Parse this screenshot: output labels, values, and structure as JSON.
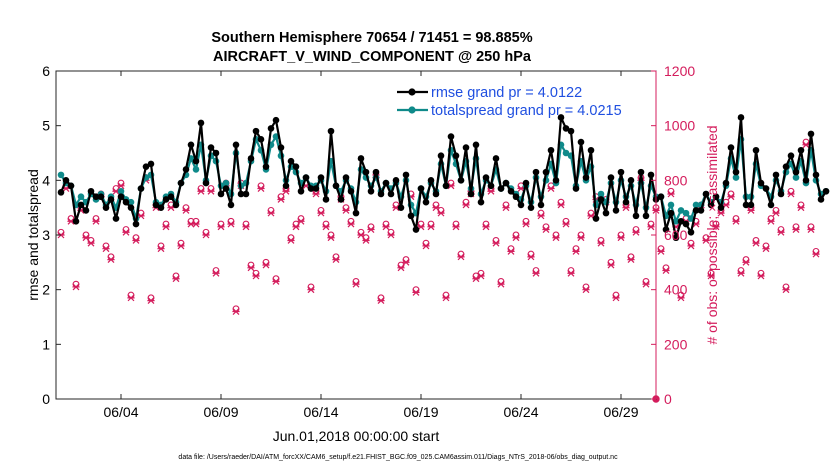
{
  "chart_data": {
    "type": "line",
    "title_line1": "Southern Hemisphere 70654 / 71451 = 98.885%",
    "title_line2": "AIRCRAFT_V_WIND_COMPONENT @ 250 hPa",
    "xlabel": "Jun.01,2018 00:00:00 start",
    "ylabel_left": "rmse and totalspread",
    "ylabel_right": "# of obs: o=possible; ×=assimilated",
    "footer": "data file: /Users/raeder/DAI/ATM_forcXX/CAM6_setup/f.e21.FHIST_BGC.f09_025.CAM6assim.011/Diags_NTrS_2018-06/obs_diag_output.nc",
    "xlim": [
      0.75,
      30.75
    ],
    "ylim_left": [
      0,
      6
    ],
    "ylim_right": [
      0,
      1200
    ],
    "x_ticks": [
      4,
      9,
      14,
      19,
      24,
      29
    ],
    "x_tick_labels": [
      "06/04",
      "06/09",
      "06/14",
      "06/19",
      "06/24",
      "06/29"
    ],
    "y_ticks_left": [
      0,
      1,
      2,
      3,
      4,
      5,
      6
    ],
    "y_tick_labels_left": [
      "0",
      "1",
      "2",
      "3",
      "4",
      "5",
      "6"
    ],
    "y_ticks_right": [
      0,
      200,
      400,
      600,
      800,
      1000,
      1200
    ],
    "y_tick_labels_right": [
      "0",
      "200",
      "400",
      "600",
      "800",
      "1000",
      "1200"
    ],
    "colors": {
      "rmse": "#000000",
      "spread": "#0f8a8a",
      "obs": "#d41c5c",
      "legend_text": "#1f4fe0",
      "axis": "#262626"
    },
    "legend": [
      {
        "key": "rmse",
        "label": "rmse grand pr = 4.0122"
      },
      {
        "key": "spread",
        "label": "totalspread grand pr = 4.0215"
      }
    ],
    "series": [
      {
        "name": "rmse",
        "x0": 1.0,
        "dx": 0.25,
        "values": [
          3.78,
          4.0,
          3.9,
          3.25,
          3.55,
          3.45,
          3.8,
          3.7,
          3.7,
          3.5,
          3.65,
          3.3,
          3.7,
          3.6,
          3.5,
          3.2,
          3.85,
          4.25,
          4.3,
          3.55,
          3.5,
          3.65,
          3.7,
          3.55,
          3.95,
          4.2,
          4.65,
          4.35,
          5.05,
          3.95,
          4.6,
          4.5,
          3.75,
          3.85,
          3.55,
          4.65,
          3.75,
          3.75,
          4.4,
          4.9,
          4.75,
          4.25,
          4.95,
          5.1,
          4.6,
          3.9,
          4.35,
          4.25,
          3.8,
          4.05,
          3.85,
          3.85,
          4.05,
          3.65,
          4.9,
          3.9,
          3.65,
          4.05,
          3.8,
          3.4,
          4.4,
          4.15,
          3.8,
          4.15,
          3.75,
          3.95,
          3.75,
          4.0,
          3.5,
          4.1,
          3.35,
          3.1,
          3.85,
          3.6,
          4.0,
          3.75,
          4.45,
          3.9,
          4.8,
          4.45,
          4.0,
          4.6,
          3.75,
          4.65,
          3.6,
          4.05,
          3.9,
          4.4,
          3.85,
          3.95,
          3.8,
          3.7,
          3.55,
          3.95,
          3.5,
          4.15,
          3.55,
          4.15,
          4.55,
          4.0,
          5.15,
          4.95,
          4.9,
          3.85,
          4.7,
          4.05,
          4.55,
          3.3,
          3.65,
          3.4,
          4.05,
          3.45,
          4.15,
          3.6,
          4.0,
          3.35,
          4.15,
          3.35,
          4.1,
          3.65,
          3.7,
          3.1,
          3.4,
          2.95,
          3.25,
          3.2,
          3.05,
          3.45,
          3.45,
          3.75,
          3.55,
          3.7,
          3.5,
          3.95,
          4.6,
          4.15,
          5.15,
          3.55,
          3.55,
          4.55,
          3.95,
          3.85,
          3.55,
          4.1,
          3.75,
          4.25,
          4.45,
          4.15,
          4.55,
          4.0,
          4.85,
          4.1,
          3.65,
          3.8
        ]
      },
      {
        "name": "totalspread",
        "x0": 1.0,
        "dx": 0.25,
        "values": [
          4.1,
          3.95,
          3.9,
          3.55,
          3.7,
          3.6,
          3.75,
          3.65,
          3.75,
          3.55,
          3.7,
          3.5,
          3.8,
          3.65,
          3.6,
          3.3,
          3.85,
          4.05,
          4.1,
          3.6,
          3.55,
          3.7,
          3.75,
          3.6,
          3.95,
          4.1,
          4.4,
          4.2,
          4.65,
          4.0,
          4.45,
          4.35,
          3.9,
          3.95,
          3.75,
          4.5,
          3.9,
          3.95,
          4.35,
          4.75,
          4.55,
          4.2,
          4.65,
          4.8,
          4.45,
          4.0,
          4.25,
          4.15,
          3.95,
          4.05,
          3.9,
          3.9,
          4.0,
          3.8,
          4.35,
          3.9,
          3.8,
          4.0,
          3.85,
          3.6,
          4.2,
          4.05,
          3.9,
          4.05,
          3.8,
          3.95,
          3.85,
          3.95,
          3.7,
          4.0,
          3.55,
          3.4,
          3.85,
          3.7,
          3.95,
          3.8,
          4.3,
          3.9,
          4.55,
          4.3,
          4.0,
          4.35,
          3.85,
          4.4,
          3.75,
          4.0,
          3.9,
          4.2,
          3.85,
          3.95,
          3.85,
          3.75,
          3.65,
          3.9,
          3.6,
          4.05,
          3.7,
          4.0,
          4.3,
          3.95,
          4.65,
          4.5,
          4.45,
          3.9,
          4.35,
          4.0,
          4.25,
          3.55,
          3.75,
          3.6,
          3.95,
          3.6,
          4.0,
          3.7,
          3.9,
          3.55,
          3.95,
          3.5,
          3.9,
          3.7,
          3.7,
          3.35,
          3.55,
          3.25,
          3.45,
          3.4,
          3.3,
          3.55,
          3.55,
          3.75,
          3.6,
          3.7,
          3.6,
          3.9,
          4.4,
          4.05,
          4.75,
          3.7,
          3.7,
          4.3,
          3.9,
          3.85,
          3.7,
          4.0,
          3.8,
          4.15,
          4.3,
          4.05,
          4.35,
          3.95,
          4.55,
          4.0,
          3.75,
          3.8
        ]
      }
    ],
    "obs_possible": {
      "x0": 1.0,
      "dx": 0.25,
      "values": [
        610,
        780,
        660,
        420,
        700,
        600,
        580,
        660,
        750,
        560,
        520,
        770,
        790,
        620,
        380,
        590,
        680,
        810,
        370,
        710,
        560,
        640,
        710,
        450,
        570,
        700,
        650,
        650,
        770,
        610,
        770,
        470,
        640,
        790,
        650,
        330,
        790,
        640,
        490,
        460,
        780,
        500,
        690,
        440,
        740,
        770,
        590,
        640,
        660,
        790,
        410,
        760,
        690,
        640,
        600,
        520,
        740,
        700,
        650,
        430,
        610,
        590,
        630,
        820,
        370,
        640,
        610,
        710,
        490,
        510,
        750,
        400,
        640,
        570,
        640,
        710,
        690,
        380,
        790,
        640,
        530,
        720,
        760,
        450,
        460,
        640,
        770,
        580,
        430,
        710,
        550,
        600,
        780,
        650,
        530,
        470,
        680,
        630,
        780,
        600,
        720,
        650,
        470,
        550,
        600,
        410,
        680,
        740,
        580,
        730,
        500,
        380,
        600,
        710,
        520,
        620,
        810,
        430,
        640,
        700,
        550,
        480,
        760,
        640,
        380,
        660,
        570,
        650,
        710,
        590,
        460,
        640,
        690,
        720,
        750,
        660,
        470,
        510,
        700,
        580,
        460,
        560,
        660,
        690,
        620,
        410,
        760,
        630,
        710,
        940,
        630,
        540
      ]
    },
    "obs_assimilated": {
      "x0": 1.0,
      "dx": 0.25,
      "values": [
        600,
        770,
        650,
        410,
        690,
        590,
        570,
        650,
        740,
        550,
        510,
        760,
        780,
        610,
        370,
        580,
        670,
        800,
        360,
        700,
        550,
        630,
        700,
        440,
        560,
        690,
        640,
        640,
        760,
        600,
        760,
        460,
        630,
        780,
        640,
        320,
        780,
        630,
        480,
        450,
        770,
        490,
        680,
        430,
        730,
        760,
        580,
        630,
        650,
        780,
        400,
        750,
        680,
        630,
        590,
        510,
        730,
        690,
        640,
        420,
        600,
        580,
        620,
        810,
        360,
        630,
        600,
        700,
        480,
        500,
        740,
        390,
        630,
        560,
        630,
        700,
        680,
        370,
        780,
        630,
        520,
        710,
        750,
        440,
        450,
        630,
        760,
        570,
        420,
        700,
        540,
        590,
        770,
        640,
        520,
        460,
        670,
        620,
        770,
        590,
        710,
        640,
        460,
        540,
        590,
        400,
        670,
        730,
        570,
        720,
        490,
        370,
        590,
        700,
        510,
        610,
        800,
        420,
        630,
        690,
        540,
        470,
        750,
        630,
        370,
        650,
        560,
        640,
        700,
        580,
        450,
        630,
        680,
        710,
        740,
        650,
        460,
        500,
        690,
        570,
        450,
        550,
        650,
        680,
        610,
        400,
        750,
        620,
        700,
        930,
        620,
        530
      ]
    }
  }
}
